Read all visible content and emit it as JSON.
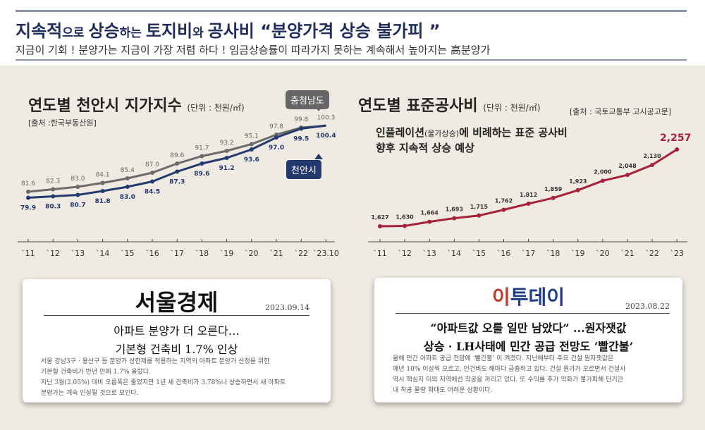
{
  "header": {
    "title_parts": [
      {
        "text": "지속적",
        "sm": false
      },
      {
        "text": "으로 ",
        "sm": true
      },
      {
        "text": "상승",
        "sm": false
      },
      {
        "text": "하는 ",
        "sm": true
      },
      {
        "text": "토지비",
        "sm": false
      },
      {
        "text": "와 ",
        "sm": true
      },
      {
        "text": "공사비 “분양가격 상승 불가피 ”",
        "sm": false
      }
    ],
    "subtitle": "지금이 기회 ! 분양가는 지금이 가장 저렴 하다 ! 임금상승률이 따라가지 못하는 계속해서 높아지는 高분양가"
  },
  "left_chart": {
    "title": "연도별 천안시 지가지수",
    "unit": "(단위 : 천원/㎡)",
    "source": "[출처 :한국부동산원]"
  },
  "right_chart": {
    "title": "연도별 표준공사비",
    "unit": "(단위 : 천원/㎡)",
    "source": "[출처 : 국토교통부 고시공고문]",
    "note_line1_a": "인플레이션",
    "note_line1_small": "(물가상승)",
    "note_line1_b": "에 비례하는 표준 공사비",
    "note_line2": "향후 지속적 상승 예상"
  },
  "chart_data": [
    {
      "type": "line",
      "title": "연도별 천안시 지가지수",
      "categories": [
        "`11",
        "`12",
        "`13",
        "`14",
        "`15",
        "`16",
        "`17",
        "`18",
        "`19",
        "`20",
        "`21",
        "`22",
        "`23.10"
      ],
      "series": [
        {
          "name": "충청남도",
          "color": "#6b6b6b",
          "values": [
            81.6,
            82.3,
            83.0,
            84.1,
            85.4,
            87.0,
            89.6,
            91.7,
            93.2,
            95.1,
            97.8,
            99.8,
            100.3
          ]
        },
        {
          "name": "천안시",
          "color": "#243a6e",
          "values": [
            79.9,
            80.3,
            80.7,
            81.8,
            83.0,
            84.5,
            87.3,
            89.6,
            91.2,
            93.6,
            97.0,
            99.5,
            100.4
          ]
        }
      ],
      "ylim": [
        70,
        104
      ]
    },
    {
      "type": "line",
      "title": "연도별 표준공사비",
      "categories": [
        "`11",
        "`12",
        "`13",
        "`14",
        "`15",
        "`16",
        "`17",
        "`18",
        "`19",
        "`20",
        "`21",
        "`22",
        "`23"
      ],
      "series": [
        {
          "name": "",
          "color": "#a8213a",
          "values": [
            1627,
            1630,
            1664,
            1693,
            1715,
            1762,
            1812,
            1859,
            1923,
            2000,
            2048,
            2130,
            2257
          ]
        }
      ],
      "value_labels": [
        "1,627",
        "1,630",
        "1,664",
        "1,693",
        "1,715",
        "1,762",
        "1,812",
        "1,859",
        "1,923",
        "2,000",
        "2,048",
        "2,130",
        "2,257"
      ],
      "ylim": [
        1500,
        2350
      ]
    }
  ],
  "articles": [
    {
      "publisher": "서울경제",
      "date": "2023.09.14",
      "headline1": "아파트 분양가 더 오른다…",
      "headline2": "기본형 건축비 1.7% 인상",
      "body": [
        "서울 강남3구 · 용산구 등 분양가 상한제를 적용하는 지역의 아파트 분양가 산정을 위한",
        "기본형 건축비가 반년 만에 1.7% 올랐다.",
        "지난 3월(2.05%) 대비 오름폭은 줄었지만 1년 새 건축비가 3.78%나 상승하면서 새 아파트",
        "분양가는 계속 인상될 것으로 보인다."
      ]
    },
    {
      "publisher_mark": "이",
      "publisher_rest": "투데이",
      "date": "2023.08.22",
      "headline1": "“아파트값 오를 일만 남았다” ...원자잿값",
      "headline2": "상승 · LH사태에 민간 공급 전망도  ‘빨간불’",
      "body": [
        "올해 민간 아파트 공급 전망에 ‘빨간불’ 이 켜졌다. 지난해부터 주요 건설 원자잿값은",
        "매년 10% 이상씩 오르고, 인건비도 해마다 급증하고 있다. 건설 원가가 오르면서 건설사",
        "역시 핵심지 이외 지역에선 착공을 꺼리고 있다. 또 수익률 추가 악화가 불가피해 단기간",
        "내 착공 물량 확대도 어려운 상황이다."
      ]
    }
  ]
}
